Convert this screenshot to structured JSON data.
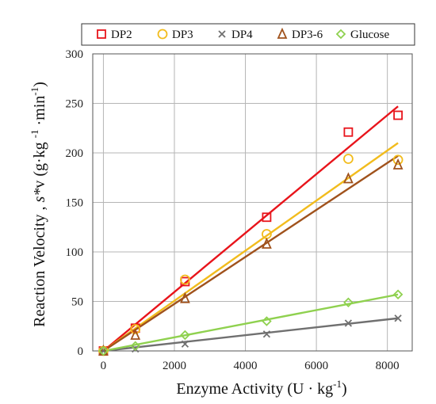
{
  "chart_data": {
    "type": "scatter",
    "xlabel": {
      "main": "Enzyme Activity (U ",
      "dot": "·",
      "unit": " kg",
      "sup": "-1",
      "close": ")"
    },
    "ylabel": {
      "a": "Reaction Velocity , ",
      "b": "s*",
      "c": "v (g",
      "d": "·",
      "e": "kg ",
      "f": "-1",
      "g": " ·",
      "h": "min",
      "i": "-1",
      "j": ")"
    },
    "xlim": [
      -300,
      8700
    ],
    "ylim": [
      0,
      300
    ],
    "x_ticks": [
      0,
      2000,
      4000,
      6000,
      8000
    ],
    "y_ticks": [
      0,
      50,
      100,
      150,
      200,
      250,
      300
    ],
    "grid": true,
    "legend_position": "top",
    "series": [
      {
        "name": "DP2",
        "color": "#e8141b",
        "marker": "square",
        "x": [
          0,
          900,
          2300,
          4600,
          6900,
          8300
        ],
        "y": [
          0,
          23,
          70,
          135,
          221,
          238
        ],
        "fit": [
          [
            0,
            0
          ],
          [
            8300,
            247
          ]
        ]
      },
      {
        "name": "DP3",
        "color": "#f2bc1d",
        "marker": "circle",
        "x": [
          0,
          900,
          2300,
          4600,
          6900,
          8300
        ],
        "y": [
          0,
          22,
          72,
          118,
          194,
          193
        ],
        "fit": [
          [
            0,
            0
          ],
          [
            8300,
            210
          ]
        ]
      },
      {
        "name": "DP4",
        "color": "#707070",
        "marker": "x",
        "x": [
          0,
          900,
          2300,
          4600,
          6900,
          8300
        ],
        "y": [
          0,
          2,
          7,
          17,
          28,
          33
        ],
        "fit": [
          [
            0,
            0
          ],
          [
            8300,
            33
          ]
        ]
      },
      {
        "name": "DP3-6",
        "color": "#a0521c",
        "marker": "triangle",
        "x": [
          0,
          900,
          2300,
          4600,
          6900,
          8300
        ],
        "y": [
          0,
          16,
          53,
          108,
          174,
          188
        ],
        "fit": [
          [
            0,
            0
          ],
          [
            8300,
            197
          ]
        ]
      },
      {
        "name": "Glucose",
        "color": "#8fd14f",
        "marker": "diamond",
        "x": [
          0,
          900,
          2300,
          4600,
          6900,
          8300
        ],
        "y": [
          0,
          5,
          16,
          30,
          49,
          57
        ],
        "fit": [
          [
            0,
            0
          ],
          [
            8300,
            57
          ]
        ]
      }
    ]
  }
}
